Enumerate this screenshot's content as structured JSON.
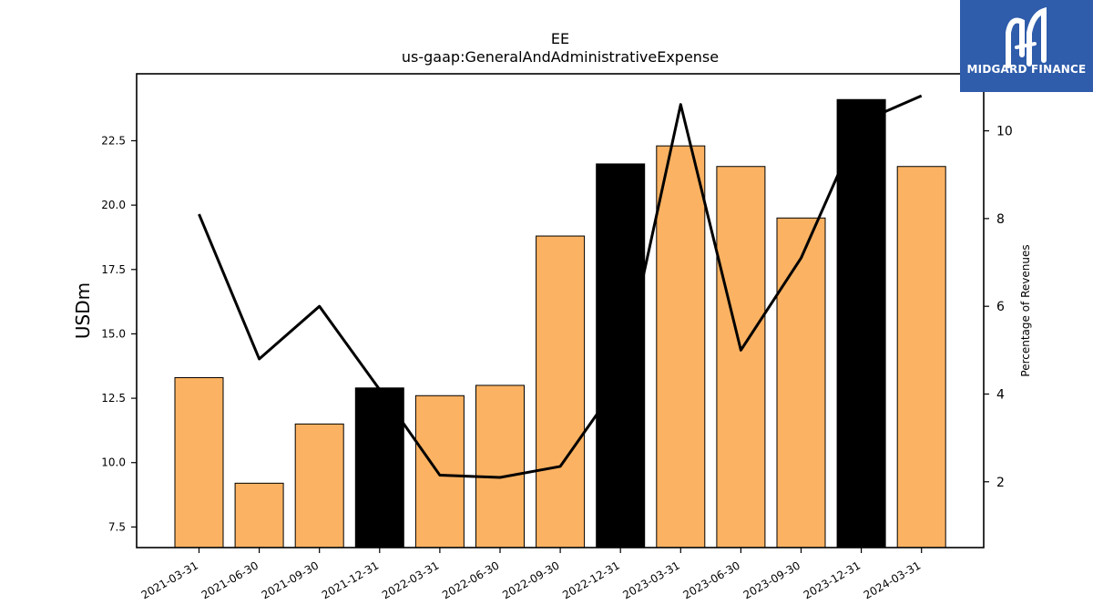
{
  "chart_data": {
    "type": "bar",
    "title": "EE",
    "subtitle": "us-gaap:GeneralAndAdministrativeExpense",
    "ylabel": "USDm",
    "y2label": "Percentage of Revenues",
    "categories": [
      "2021-03-31",
      "2021-06-30",
      "2021-09-30",
      "2021-12-31",
      "2022-03-31",
      "2022-06-30",
      "2022-09-30",
      "2022-12-31",
      "2023-03-31",
      "2023-06-30",
      "2023-09-30",
      "2023-12-31",
      "2024-03-31"
    ],
    "series": [
      {
        "type": "bar",
        "axis": "left",
        "values": [
          13.3,
          9.2,
          11.5,
          12.9,
          12.6,
          13.0,
          18.8,
          21.6,
          22.3,
          21.5,
          19.5,
          24.1,
          21.5
        ],
        "highlight": [
          false,
          false,
          false,
          true,
          false,
          false,
          false,
          true,
          false,
          false,
          false,
          true,
          false
        ]
      },
      {
        "type": "line",
        "axis": "right",
        "values": [
          8.1,
          4.8,
          6.0,
          4.1,
          2.15,
          2.1,
          2.35,
          4.3,
          10.6,
          5.0,
          7.1,
          10.2,
          10.8
        ]
      }
    ],
    "ylim": [
      6.7,
      25.1
    ],
    "y2lim": [
      0.5,
      11.3
    ],
    "yticks": [
      7.5,
      10.0,
      12.5,
      15.0,
      17.5,
      20.0,
      22.5
    ],
    "y2ticks": [
      2,
      4,
      6,
      8,
      10
    ],
    "colors": {
      "bar": "#fbb262",
      "highlight": "#000000",
      "line": "#000000",
      "edge": "#000000"
    },
    "grid": false
  },
  "logo": {
    "name": "MIDGARD FINANCE",
    "color": "#2f5cab"
  }
}
